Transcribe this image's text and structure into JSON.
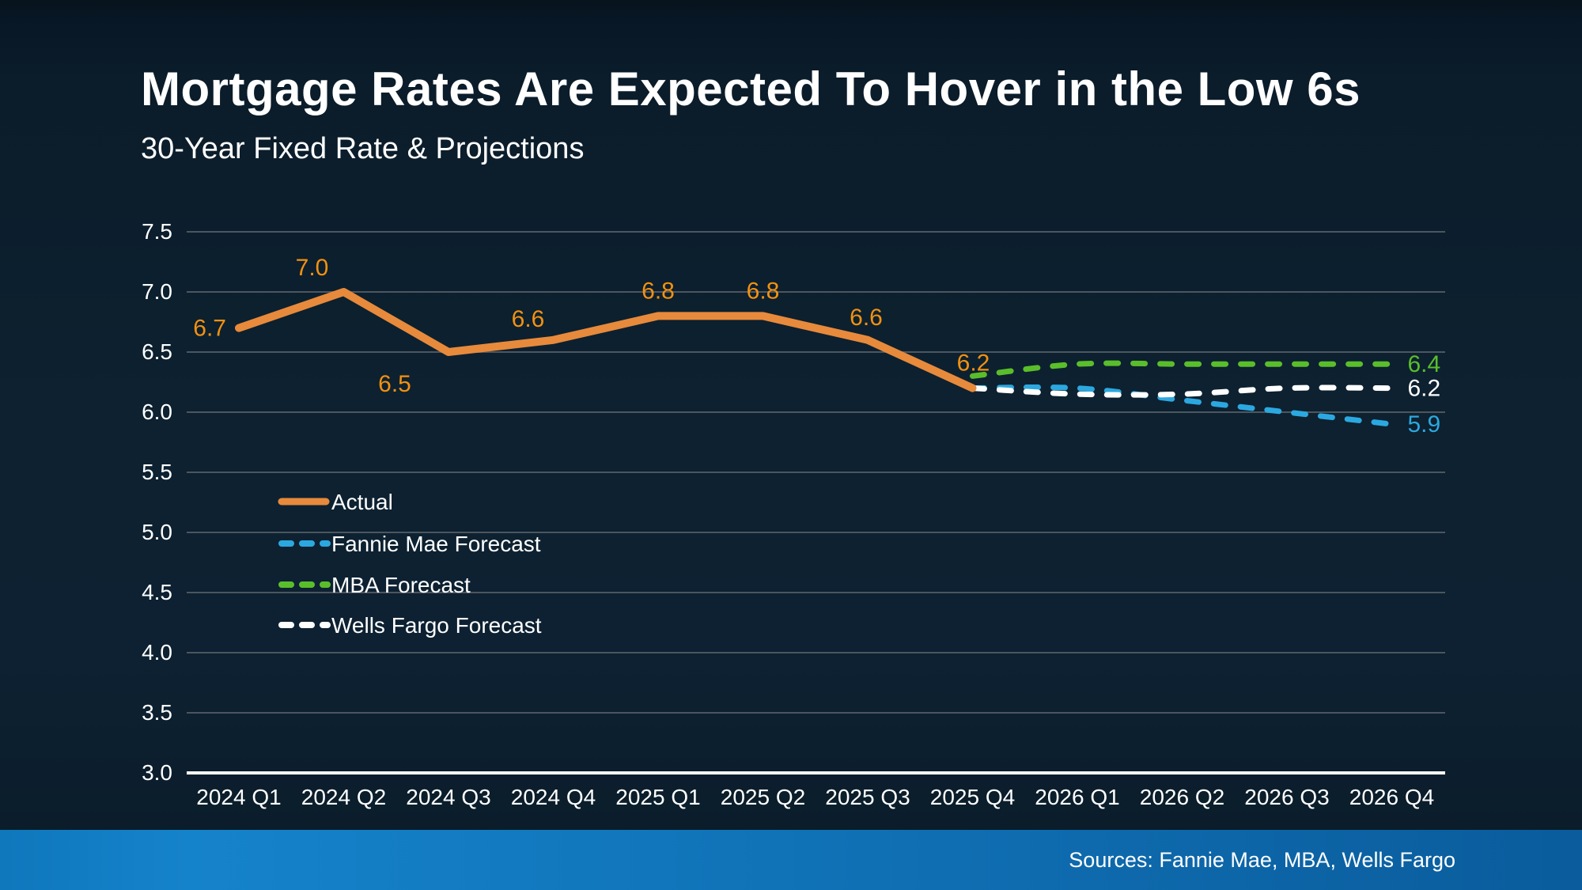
{
  "header": {
    "title": "Mortgage Rates Are Expected To Hover in the Low 6s",
    "subtitle": "30-Year Fixed Rate & Projections"
  },
  "footer": {
    "sources": "Sources: Fannie Mae, MBA, Wells Fargo"
  },
  "colors": {
    "background": "#0d2130",
    "text": "#ffffff",
    "grid": "#4d565e",
    "axis": "#ffffff",
    "actual_orange": "#e78a3c",
    "label_orange": "#f29111",
    "fannie_blue": "#2ca8e0",
    "mba_green": "#5abe2b",
    "wells_white": "#ffffff",
    "footer_gradient_left": "#1583cb",
    "footer_gradient_right": "#0a5c9c"
  },
  "chart_data": {
    "type": "line",
    "title": "Mortgage Rates Are Expected To Hover in the Low 6s",
    "subtitle": "30-Year Fixed Rate & Projections",
    "categories": [
      "2024 Q1",
      "2024 Q2",
      "2024 Q3",
      "2024 Q4",
      "2025 Q1",
      "2025 Q2",
      "2025 Q3",
      "2025 Q4",
      "2026 Q1",
      "2026 Q2",
      "2026 Q3",
      "2026 Q4"
    ],
    "ylim": [
      3.0,
      7.5
    ],
    "y_ticks": [
      7.5,
      7.0,
      6.5,
      6.0,
      5.5,
      5.0,
      4.5,
      4.0,
      3.5,
      3.0
    ],
    "y_tick_labels": [
      "7.5",
      "7.0",
      "6.5",
      "6.0",
      "5.5",
      "5.0",
      "4.5",
      "4.0",
      "3.5",
      "3.0"
    ],
    "grid": "horizontal",
    "legend_position": "inside-middle-left",
    "legend": [
      "Actual",
      "Fannie Mae Forecast",
      "MBA Forecast",
      "Wells Fargo Forecast"
    ],
    "series": [
      {
        "name": "Actual",
        "color_key": "actual_orange",
        "label_color_key": "label_orange",
        "style": "solid",
        "start_index": 0,
        "values": [
          6.7,
          7.0,
          6.5,
          6.6,
          6.8,
          6.8,
          6.6,
          6.2
        ],
        "point_labels": [
          {
            "text": "6.7",
            "dx": -16,
            "dy": 10,
            "anchor": "end"
          },
          {
            "text": "7.0",
            "dx": -40,
            "dy": -21,
            "anchor": "middle"
          },
          {
            "text": "6.5",
            "dx": -68,
            "dy": 50,
            "anchor": "middle"
          },
          {
            "text": "6.6",
            "dx": -32,
            "dy": -17,
            "anchor": "middle"
          },
          {
            "text": "6.8",
            "dx": 0,
            "dy": -22,
            "anchor": "middle"
          },
          {
            "text": "6.8",
            "dx": 0,
            "dy": -22,
            "anchor": "middle"
          },
          {
            "text": "6.6",
            "dx": -2,
            "dy": -19,
            "anchor": "middle"
          },
          {
            "text": "6.2",
            "dx": 1,
            "dy": -22,
            "anchor": "middle"
          }
        ]
      },
      {
        "name": "Fannie Mae Forecast",
        "color_key": "fannie_blue",
        "style": "dashed",
        "start_index": 7,
        "values": [
          6.2,
          6.2,
          6.1,
          6.0,
          5.9
        ],
        "end_label": "5.9"
      },
      {
        "name": "Wells Fargo Forecast",
        "color_key": "wells_white",
        "style": "dashed",
        "start_index": 7,
        "values": [
          6.2,
          6.15,
          6.15,
          6.2,
          6.2
        ],
        "end_label": "6.2"
      },
      {
        "name": "MBA Forecast",
        "color_key": "mba_green",
        "style": "dashed",
        "start_index": 7,
        "values": [
          6.3,
          6.4,
          6.4,
          6.4,
          6.4
        ],
        "end_label": "6.4"
      }
    ]
  }
}
